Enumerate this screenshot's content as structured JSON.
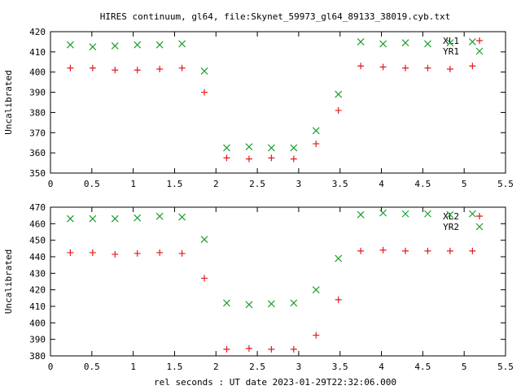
{
  "title": "HIRES continuum, gl64, file:Skynet_59973_gl64_89133_38019.cyb.txt",
  "xlabel": "rel seconds : UT date 2023-01-29T22:32:06.000",
  "chart_data": [
    {
      "type": "scatter",
      "ylabel": "Uncalibrated",
      "xlim": [
        0,
        5.5
      ],
      "ylim": [
        350,
        420
      ],
      "xticks": [
        "0",
        "0.5",
        "1",
        "1.5",
        "2",
        "2.5",
        "3",
        "3.5",
        "4",
        "4.5",
        "5",
        "5.5"
      ],
      "yticks": [
        "350",
        "360",
        "370",
        "380",
        "390",
        "400",
        "410",
        "420"
      ],
      "legend_position": "top-right",
      "series": [
        {
          "name": "XL1",
          "marker": "plus",
          "color": "#e41a1c",
          "x": [
            0.24,
            0.51,
            0.78,
            1.05,
            1.32,
            1.59,
            1.86,
            2.13,
            2.4,
            2.67,
            2.94,
            3.21,
            3.48,
            3.75,
            4.02,
            4.29,
            4.56,
            4.83,
            5.1
          ],
          "y": [
            402,
            402,
            401,
            401,
            401.5,
            402,
            390,
            357.5,
            357,
            357.5,
            357,
            364.5,
            381,
            403,
            402.5,
            402,
            402,
            401.5,
            403
          ]
        },
        {
          "name": "YR1",
          "marker": "cross",
          "color": "#1b9e2b",
          "x": [
            0.24,
            0.51,
            0.78,
            1.05,
            1.32,
            1.59,
            1.86,
            2.13,
            2.4,
            2.67,
            2.94,
            3.21,
            3.48,
            3.75,
            4.02,
            4.29,
            4.56,
            4.83,
            5.1
          ],
          "y": [
            413.5,
            412.5,
            413,
            413.5,
            413.5,
            414,
            400.5,
            362.5,
            363,
            362.5,
            362.5,
            371,
            389,
            415,
            414,
            414.5,
            414,
            414.5,
            415
          ]
        }
      ]
    },
    {
      "type": "scatter",
      "ylabel": "Uncalibrated",
      "xlim": [
        0,
        5.5
      ],
      "ylim": [
        380,
        470
      ],
      "xticks": [
        "0",
        "0.5",
        "1",
        "1.5",
        "2",
        "2.5",
        "3",
        "3.5",
        "4",
        "4.5",
        "5",
        "5.5"
      ],
      "yticks": [
        "380",
        "390",
        "400",
        "410",
        "420",
        "430",
        "440",
        "450",
        "460",
        "470"
      ],
      "legend_position": "top-right",
      "series": [
        {
          "name": "XL2",
          "marker": "plus",
          "color": "#e41a1c",
          "x": [
            0.24,
            0.51,
            0.78,
            1.05,
            1.32,
            1.59,
            1.86,
            2.13,
            2.4,
            2.67,
            2.94,
            3.21,
            3.48,
            3.75,
            4.02,
            4.29,
            4.56,
            4.83,
            5.1
          ],
          "y": [
            442.5,
            442.5,
            441.5,
            442,
            442.5,
            442,
            427,
            384,
            384.5,
            384,
            384,
            392.5,
            414,
            443.5,
            444,
            443.5,
            443.5,
            443.5,
            443.5
          ]
        },
        {
          "name": "YR2",
          "marker": "cross",
          "color": "#1b9e2b",
          "x": [
            0.24,
            0.51,
            0.78,
            1.05,
            1.32,
            1.59,
            1.86,
            2.13,
            2.4,
            2.67,
            2.94,
            3.21,
            3.48,
            3.75,
            4.02,
            4.29,
            4.56,
            4.83,
            5.1
          ],
          "y": [
            463,
            463,
            463,
            463.5,
            464.5,
            464,
            450.5,
            412,
            411,
            411.5,
            412,
            420,
            439,
            465.5,
            466.5,
            466,
            466,
            465.5,
            466
          ]
        }
      ]
    }
  ]
}
